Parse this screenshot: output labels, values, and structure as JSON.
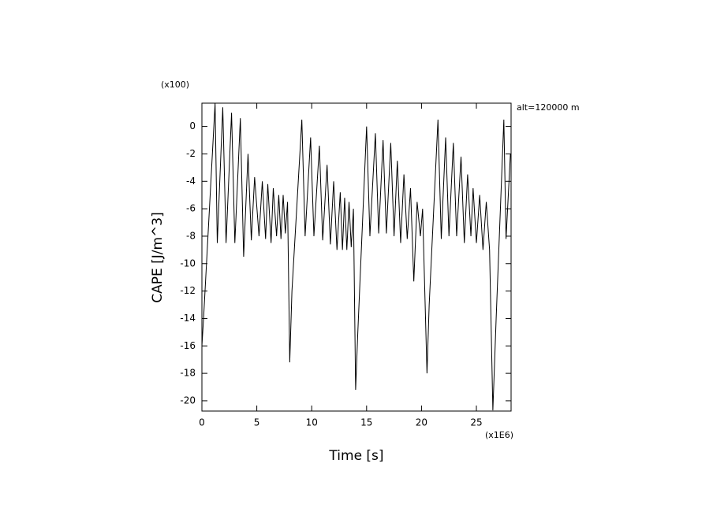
{
  "chart_data": {
    "type": "line",
    "ylabel": "CAPE [J/m^3]",
    "xlabel": "Time [s]",
    "y_multiplier": "(x100)",
    "x_multiplier": "(x1E6)",
    "annotation": "alt=120000 m",
    "xlim": [
      0,
      28.16
    ],
    "ylim": [
      -20.75,
      1.7
    ],
    "xticks": [
      0,
      5,
      10,
      15,
      20,
      25
    ],
    "yticks": [
      0,
      -2,
      -4,
      -6,
      -8,
      -10,
      -12,
      -14,
      -16,
      -18,
      -20
    ],
    "x": [
      0,
      0.15,
      1.2,
      1.4,
      1.9,
      2.2,
      2.7,
      3.0,
      3.5,
      3.8,
      4.2,
      4.5,
      4.8,
      5.2,
      5.5,
      5.8,
      6.0,
      6.3,
      6.5,
      6.8,
      7.0,
      7.2,
      7.4,
      7.6,
      7.8,
      8.0,
      8.2,
      9.1,
      9.4,
      9.9,
      10.2,
      10.7,
      11.0,
      11.4,
      11.7,
      12.0,
      12.3,
      12.6,
      12.8,
      13.0,
      13.2,
      13.4,
      13.6,
      13.8,
      14.0,
      14.2,
      15.0,
      15.3,
      15.8,
      16.1,
      16.5,
      16.8,
      17.2,
      17.5,
      17.8,
      18.1,
      18.4,
      18.7,
      19.0,
      19.3,
      19.6,
      19.9,
      20.1,
      20.5,
      20.7,
      21.5,
      21.8,
      22.2,
      22.5,
      22.9,
      23.2,
      23.6,
      23.9,
      24.2,
      24.5,
      24.7,
      25.0,
      25.3,
      25.6,
      25.9,
      26.2,
      26.5,
      26.8,
      27.5,
      27.7,
      28.1
    ],
    "series": [
      {
        "color": "#000000",
        "values": [
          -16,
          -14,
          1.7,
          -8.5,
          1.4,
          -8.5,
          1.0,
          -8.5,
          0.6,
          -9.5,
          -2.0,
          -8.3,
          -3.7,
          -8.0,
          -4.0,
          -8.2,
          -4.2,
          -8.5,
          -4.5,
          -8.0,
          -5.0,
          -8.2,
          -5.0,
          -7.8,
          -5.5,
          -17.2,
          -12,
          0.5,
          -8.0,
          -0.8,
          -8.0,
          -1.4,
          -8.3,
          -2.8,
          -8.6,
          -4.0,
          -9.0,
          -4.8,
          -9.0,
          -5.2,
          -9.0,
          -5.5,
          -8.8,
          -6.0,
          -19.2,
          -15,
          0,
          -8.0,
          -0.5,
          -7.8,
          -1.0,
          -7.8,
          -1.2,
          -8.0,
          -2.5,
          -8.5,
          -3.5,
          -8.2,
          -4.5,
          -11.3,
          -5.5,
          -8.0,
          -6.0,
          -18.0,
          -13,
          0.5,
          -8.2,
          -0.8,
          -8.0,
          -1.2,
          -8.0,
          -2.2,
          -8.5,
          -3.5,
          -8.0,
          -4.5,
          -8.5,
          -5.0,
          -9.0,
          -5.5,
          -9.0,
          -20.7,
          -14,
          0.5,
          -8.2,
          -2.0
        ]
      }
    ]
  }
}
